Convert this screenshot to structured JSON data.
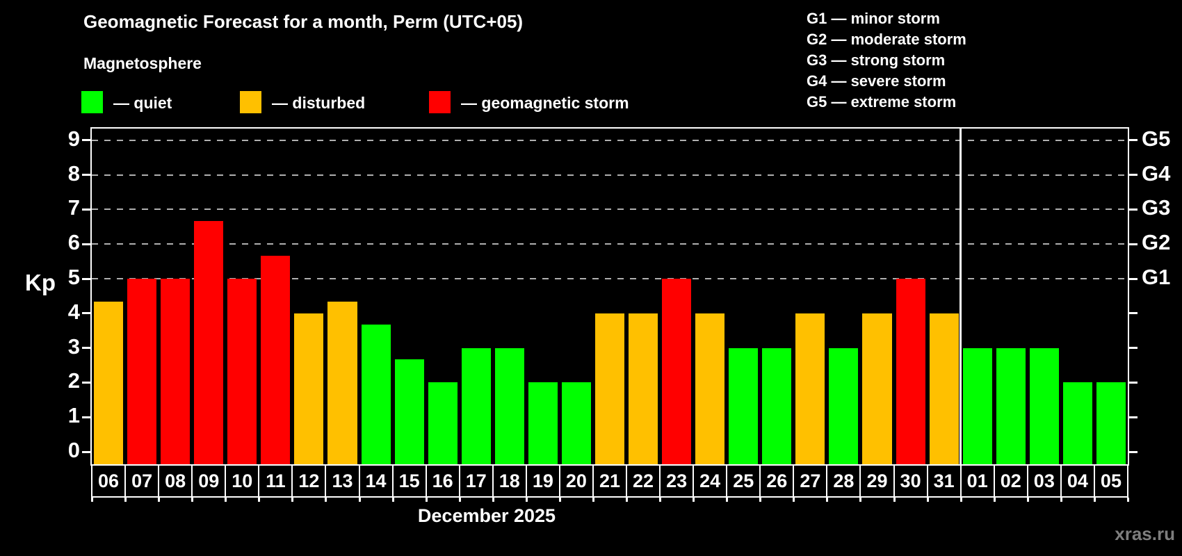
{
  "header": {
    "title": "Geomagnetic Forecast for a month, Perm (UTC+05)",
    "subtitle": "Magnetosphere"
  },
  "status_legend": [
    {
      "name": "quiet",
      "label": "— quiet",
      "color": "#00ff00"
    },
    {
      "name": "disturbed",
      "label": "— disturbed",
      "color": "#ffc000"
    },
    {
      "name": "storm",
      "label": "— geomagnetic storm",
      "color": "#ff0000"
    }
  ],
  "g_scale_legend": [
    {
      "label": "G1 — minor storm"
    },
    {
      "label": "G2 — moderate storm"
    },
    {
      "label": "G3 — strong storm"
    },
    {
      "label": "G4 — severe storm"
    },
    {
      "label": "G5 — extreme storm"
    }
  ],
  "chart_data": {
    "type": "bar",
    "title": "Geomagnetic Forecast for a month, Perm (UTC+05)",
    "ylabel": "Kp",
    "xlabel": "December 2025",
    "ylim": [
      0,
      9
    ],
    "y_ticks": [
      0,
      1,
      2,
      3,
      4,
      5,
      6,
      7,
      8,
      9
    ],
    "gridline_levels": [
      5,
      6,
      7,
      8,
      9
    ],
    "grid": "dashed-horizontal",
    "legend_position": "top",
    "right_axis": [
      {
        "kp": 5,
        "label": "G1"
      },
      {
        "kp": 6,
        "label": "G2"
      },
      {
        "kp": 7,
        "label": "G3"
      },
      {
        "kp": 8,
        "label": "G4"
      },
      {
        "kp": 9,
        "label": "G5"
      }
    ],
    "month_divider_after_index": 25,
    "days": [
      {
        "date": "06",
        "kp": 4.33,
        "status": "disturbed"
      },
      {
        "date": "07",
        "kp": 5,
        "status": "storm"
      },
      {
        "date": "08",
        "kp": 5,
        "status": "storm"
      },
      {
        "date": "09",
        "kp": 6.67,
        "status": "storm"
      },
      {
        "date": "10",
        "kp": 5,
        "status": "storm"
      },
      {
        "date": "11",
        "kp": 5.67,
        "status": "storm"
      },
      {
        "date": "12",
        "kp": 4,
        "status": "disturbed"
      },
      {
        "date": "13",
        "kp": 4.33,
        "status": "disturbed"
      },
      {
        "date": "14",
        "kp": 3.67,
        "status": "quiet"
      },
      {
        "date": "15",
        "kp": 2.67,
        "status": "quiet"
      },
      {
        "date": "16",
        "kp": 2,
        "status": "quiet"
      },
      {
        "date": "17",
        "kp": 3,
        "status": "quiet"
      },
      {
        "date": "18",
        "kp": 3,
        "status": "quiet"
      },
      {
        "date": "19",
        "kp": 2,
        "status": "quiet"
      },
      {
        "date": "20",
        "kp": 2,
        "status": "quiet"
      },
      {
        "date": "21",
        "kp": 4,
        "status": "disturbed"
      },
      {
        "date": "22",
        "kp": 4,
        "status": "disturbed"
      },
      {
        "date": "23",
        "kp": 5,
        "status": "storm"
      },
      {
        "date": "24",
        "kp": 4,
        "status": "disturbed"
      },
      {
        "date": "25",
        "kp": 3,
        "status": "quiet"
      },
      {
        "date": "26",
        "kp": 3,
        "status": "quiet"
      },
      {
        "date": "27",
        "kp": 4,
        "status": "disturbed"
      },
      {
        "date": "28",
        "kp": 3,
        "status": "quiet"
      },
      {
        "date": "29",
        "kp": 4,
        "status": "disturbed"
      },
      {
        "date": "30",
        "kp": 5,
        "status": "storm"
      },
      {
        "date": "31",
        "kp": 4,
        "status": "disturbed"
      },
      {
        "date": "01",
        "kp": 3,
        "status": "quiet"
      },
      {
        "date": "02",
        "kp": 3,
        "status": "quiet"
      },
      {
        "date": "03",
        "kp": 3,
        "status": "quiet"
      },
      {
        "date": "04",
        "kp": 2,
        "status": "quiet"
      },
      {
        "date": "05",
        "kp": 2,
        "status": "quiet"
      }
    ]
  },
  "footer": {
    "watermark": "xras.ru"
  }
}
